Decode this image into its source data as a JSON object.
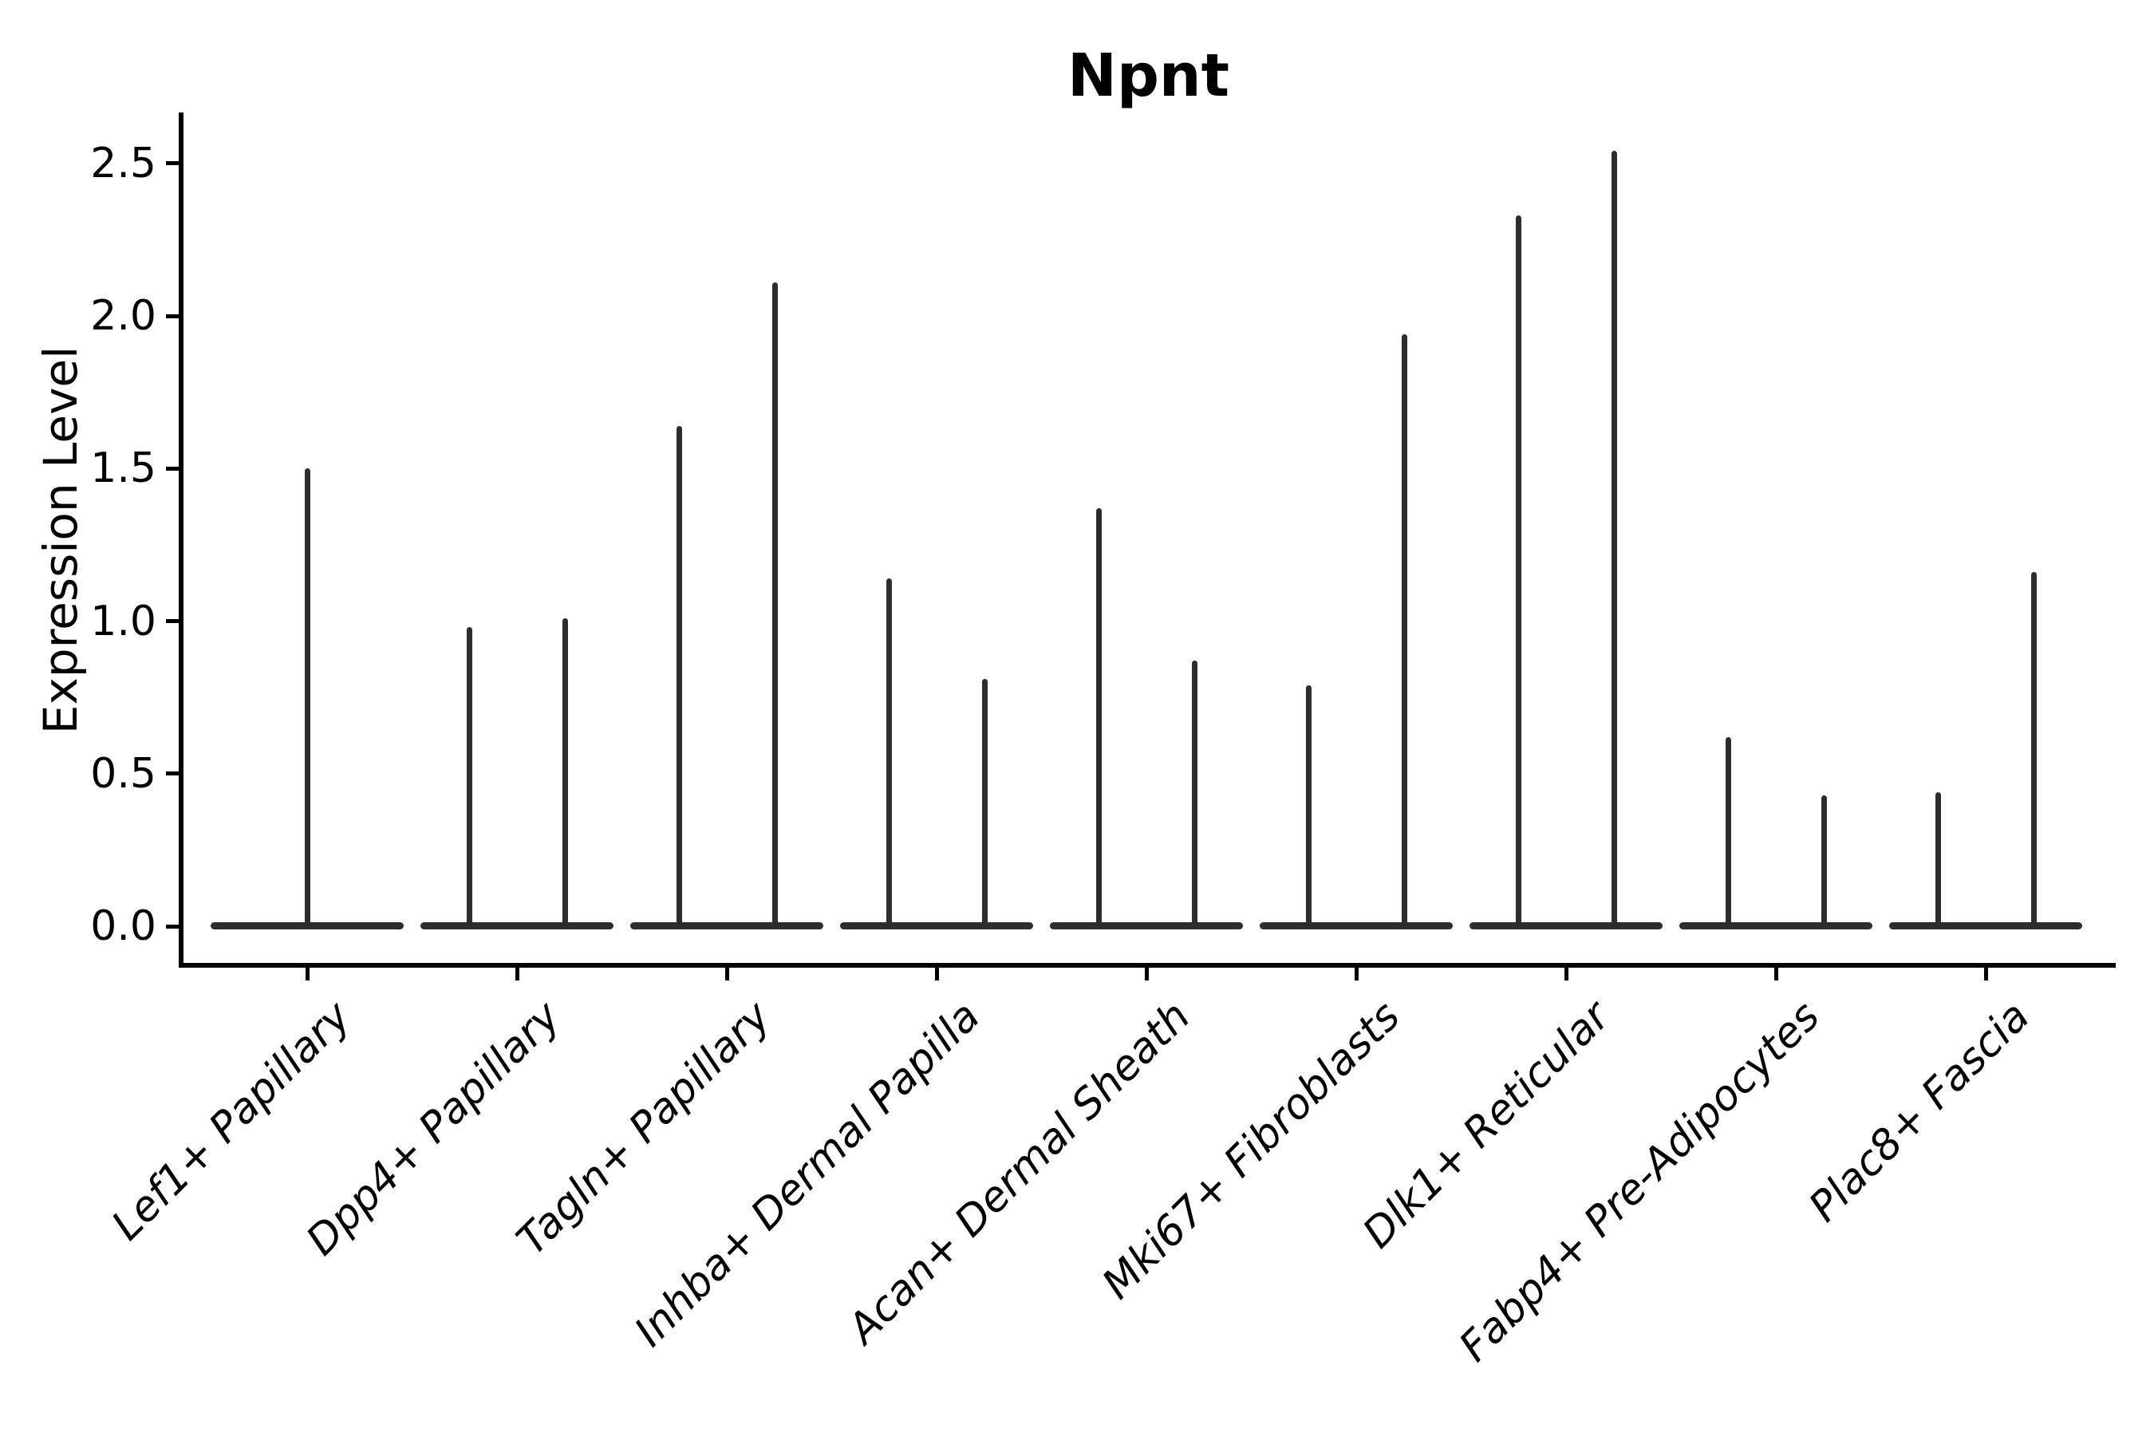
{
  "chart_data": {
    "type": "violin",
    "title": "Npnt",
    "xlabel": "",
    "ylabel": "Expression Level",
    "yticks": [
      0.0,
      0.5,
      1.0,
      1.5,
      2.0,
      2.5
    ],
    "ylim": [
      -0.13,
      2.67
    ],
    "grid": false,
    "legend": "none",
    "style_note": "split violin plot; each category shows 1-2 near-degenerate violins: a flat bar at expression 0 with a thin vertical spike rising to the maximum expression value",
    "line_color": "#2d2d2d",
    "axis_color": "#000000",
    "violins": [
      {
        "category": "Lef1+ Papillary",
        "maxima": [
          1.5
        ]
      },
      {
        "category": "Dpp4+ Papillary",
        "maxima": [
          0.98,
          1.01
        ]
      },
      {
        "category": "Tagln+ Papillary",
        "maxima": [
          1.64,
          2.11
        ]
      },
      {
        "category": "Inhba+ Dermal Papilla",
        "maxima": [
          1.14,
          0.81
        ]
      },
      {
        "category": "Acan+ Dermal Sheath",
        "maxima": [
          1.37,
          0.87
        ]
      },
      {
        "category": "Mki67+ Fibroblasts",
        "maxima": [
          0.79,
          1.94
        ]
      },
      {
        "category": "Dlk1+ Reticular",
        "maxima": [
          2.33,
          2.54
        ]
      },
      {
        "category": "Fabp4+ Pre-Adipocytes",
        "maxima": [
          0.62,
          0.43
        ]
      },
      {
        "category": "Plac8+ Fascia",
        "maxima": [
          0.44,
          1.16
        ]
      }
    ]
  }
}
